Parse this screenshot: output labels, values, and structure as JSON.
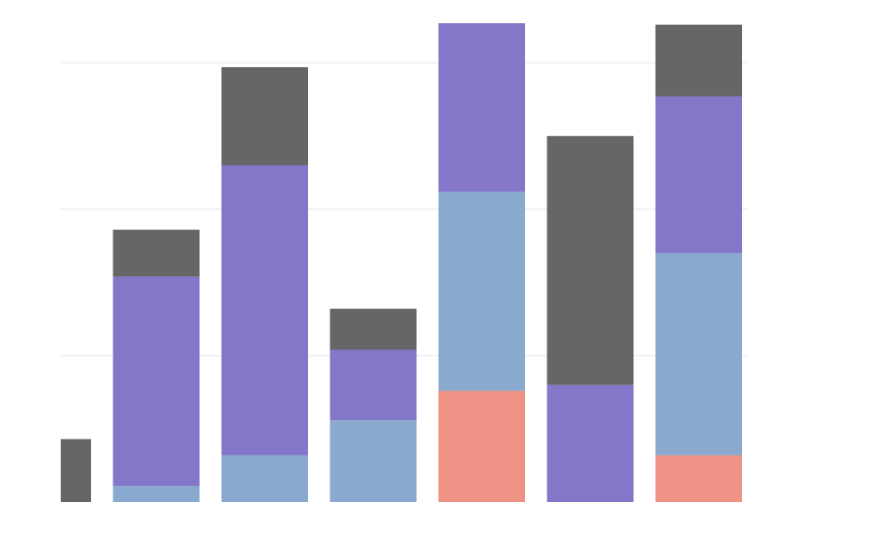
{
  "chart_data": {
    "type": "bar",
    "stacked": true,
    "title": "",
    "xlabel": "",
    "ylabel": "",
    "categories": [
      "",
      "",
      "",
      "",
      "",
      "",
      ""
    ],
    "ylim": [
      0,
      3.27
    ],
    "grid": true,
    "gridlines": [
      1,
      2,
      3
    ],
    "legend": "none",
    "series": [
      {
        "color": "#ee9285",
        "values": [
          0,
          0,
          0,
          0,
          0.76,
          0,
          0.32
        ]
      },
      {
        "color": "#8aa9cf",
        "values": [
          0,
          0.11,
          0.32,
          0.56,
          1.36,
          0,
          1.38
        ]
      },
      {
        "color": "#8477c9",
        "values": [
          0,
          1.43,
          1.98,
          0.48,
          1.15,
          0.8,
          1.07
        ]
      },
      {
        "color": "#666666",
        "values": [
          0.43,
          0.32,
          0.67,
          0.28,
          0,
          1.7,
          0.49
        ]
      }
    ],
    "grid_color": "#eeeeee"
  }
}
